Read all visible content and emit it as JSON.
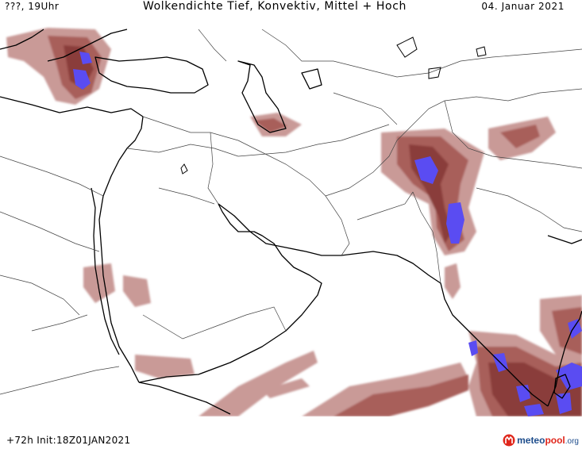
{
  "header": {
    "left": "???, 19Uhr",
    "title": "Wolkendichte  Tief, Konvektiv, Mittel + Hoch",
    "date": "04. Januar 2021"
  },
  "footer": {
    "left": "+72h  Init:18Z01JAN2021"
  },
  "brand": {
    "part1": "meteo",
    "part2": "pool",
    "part3": ".org",
    "icon": "meteopool-logo-icon"
  },
  "colors": {
    "cloud_light": "#c99a97",
    "cloud_mid": "#a85e5a",
    "cloud_dark": "#8a3d3a",
    "convective": "#5a4cf2",
    "coast": "#000000",
    "border": "#444444"
  }
}
